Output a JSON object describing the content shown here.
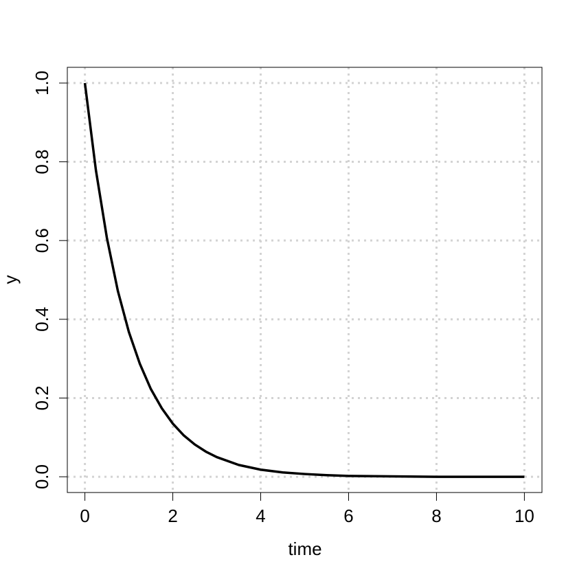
{
  "chart_data": {
    "type": "line",
    "x_label": "time",
    "y_label": "y",
    "x": [
      0,
      0.25,
      0.5,
      0.75,
      1,
      1.25,
      1.5,
      1.75,
      2,
      2.25,
      2.5,
      2.75,
      3,
      3.5,
      4,
      4.5,
      5,
      5.5,
      6,
      7,
      8,
      9,
      10
    ],
    "series": [
      {
        "color": "#000000",
        "values": [
          1,
          0.779,
          0.607,
          0.472,
          0.368,
          0.287,
          0.223,
          0.174,
          0.135,
          0.105,
          0.082,
          0.064,
          0.05,
          0.03,
          0.018,
          0.011,
          0.007,
          0.004,
          0.002,
          0.001,
          0,
          0,
          0
        ]
      }
    ],
    "xlim": [
      -0.4,
      10.4
    ],
    "xticks": [
      0,
      2,
      4,
      6,
      8,
      10
    ],
    "ylim": [
      -0.04,
      1.04
    ],
    "yticks": [
      {
        "value": 0,
        "label": "0.0"
      },
      0.2,
      0.4,
      0.6,
      0.8,
      {
        "value": 1,
        "label": "1.0"
      }
    ],
    "grid": true,
    "grid_color": "#d3d3d3"
  }
}
